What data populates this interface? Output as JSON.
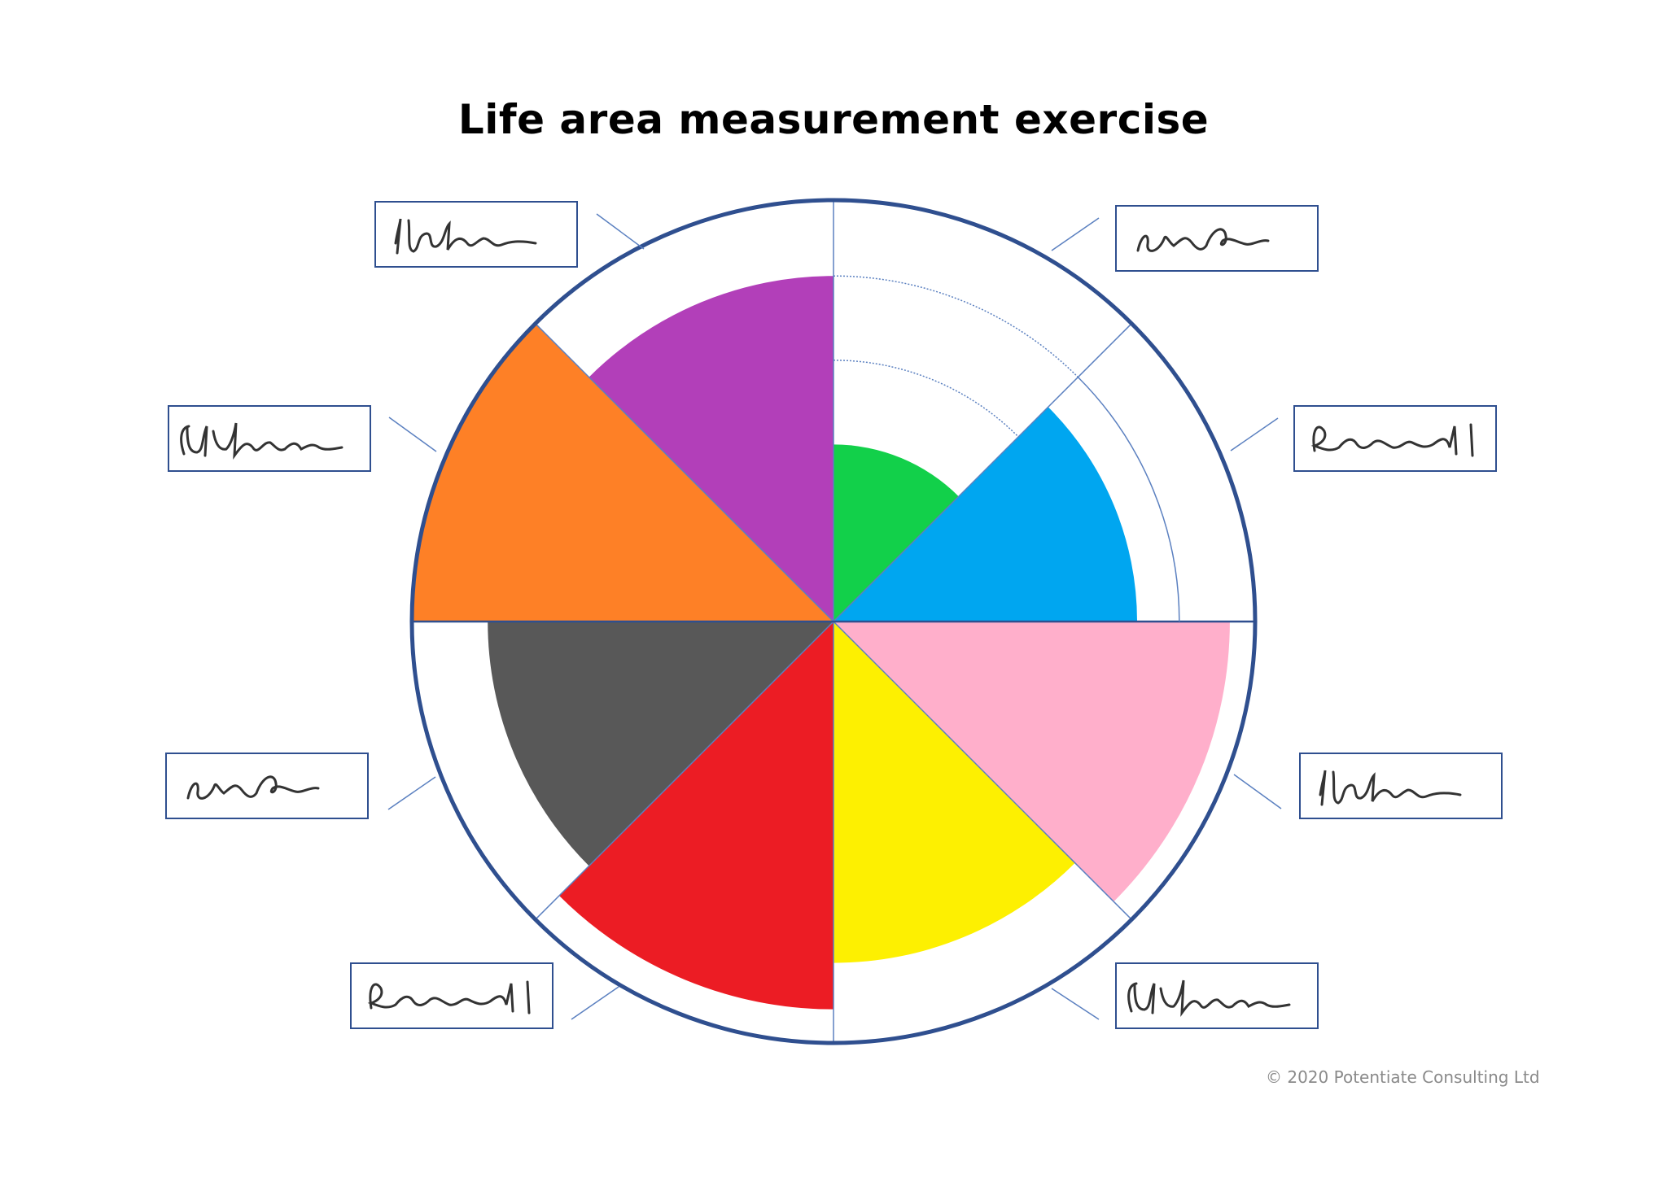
{
  "title": "Life area measurement exercise",
  "copyright": "© 2020  Potentiate Consulting Ltd",
  "wheel": {
    "segments": [
      {
        "position": "top-right-upper",
        "color": "#12d04a",
        "level": 0.42
      },
      {
        "position": "top-right-lower",
        "color": "#00a6f0",
        "level": 0.72
      },
      {
        "position": "bottom-right-upper",
        "color": "#ffafcb",
        "level": 0.94
      },
      {
        "position": "bottom-right-lower",
        "color": "#fdf001",
        "level": 0.81
      },
      {
        "position": "bottom-left-lower",
        "color": "#ec1c24",
        "level": 0.92
      },
      {
        "position": "bottom-left-upper",
        "color": "#585858",
        "level": 0.82
      },
      {
        "position": "top-left-lower",
        "color": "#fe8026",
        "level": 1.0
      },
      {
        "position": "top-left-upper",
        "color": "#b23fb9",
        "level": 0.82
      }
    ],
    "ring_color": "#2f4f8f",
    "guide_color": "#5b80c0"
  },
  "labels": [
    {
      "position": "top-right",
      "signature": "signature-b"
    },
    {
      "position": "right-upper",
      "signature": "signature-c"
    },
    {
      "position": "right-lower",
      "signature": "signature-a"
    },
    {
      "position": "bottom-right",
      "signature": "signature-d"
    },
    {
      "position": "bottom-left",
      "signature": "signature-c"
    },
    {
      "position": "left-lower",
      "signature": "signature-b"
    },
    {
      "position": "left-upper",
      "signature": "signature-d"
    },
    {
      "position": "top-left",
      "signature": "signature-a"
    }
  ]
}
